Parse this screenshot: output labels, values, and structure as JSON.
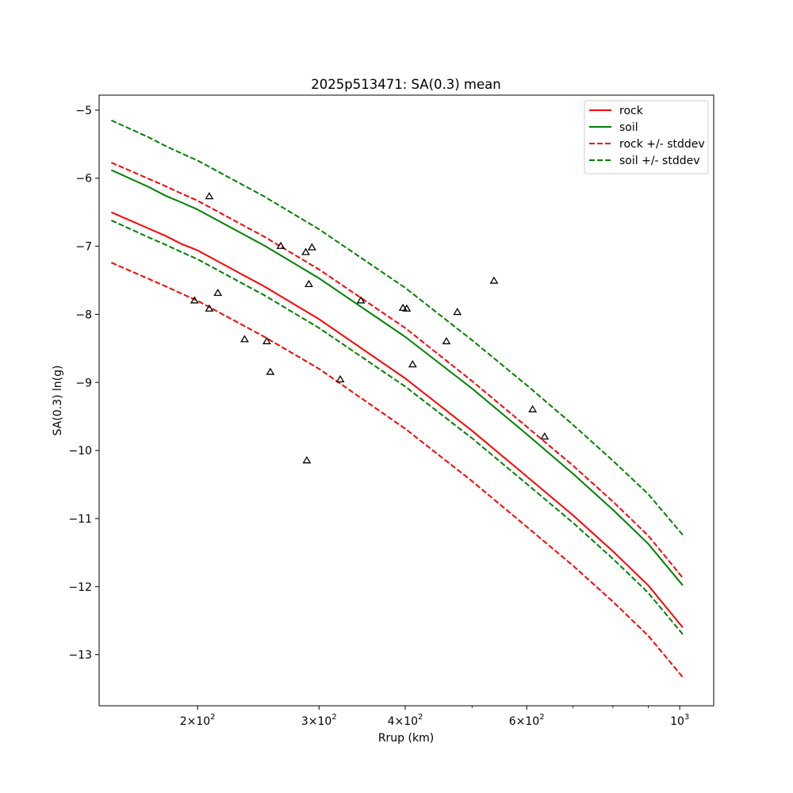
{
  "chart_data": {
    "type": "line",
    "title": "2025p513471: SA(0.3) mean",
    "xlabel": "Rrup (km)",
    "ylabel": "SA(0.3) ln(g)",
    "xscale": "log",
    "xlim": [
      144,
      1120
    ],
    "ylim": [
      -13.75,
      -4.78
    ],
    "grid": false,
    "legend_position": "top-right",
    "x_ticks": [
      {
        "value": 200,
        "mantissa": "2",
        "exponent": "2"
      },
      {
        "value": 300,
        "mantissa": "3",
        "exponent": "2"
      },
      {
        "value": 400,
        "mantissa": "4",
        "exponent": "2"
      },
      {
        "value": 600,
        "mantissa": "6",
        "exponent": "2"
      },
      {
        "value": 1000,
        "mantissa": "",
        "exponent": "3"
      }
    ],
    "x_tick_base": "10",
    "x_tick_times": "×",
    "y_ticks": [
      {
        "value": -5,
        "label": "−5"
      },
      {
        "value": -6,
        "label": "−6"
      },
      {
        "value": -7,
        "label": "−7"
      },
      {
        "value": -8,
        "label": "−8"
      },
      {
        "value": -9,
        "label": "−9"
      },
      {
        "value": -10,
        "label": "−10"
      },
      {
        "value": -11,
        "label": "−11"
      },
      {
        "value": -12,
        "label": "−12"
      },
      {
        "value": -13,
        "label": "−13"
      }
    ],
    "x": [
      150,
      170,
      180,
      190,
      200,
      250,
      300,
      400,
      500,
      600,
      700,
      800,
      900,
      1010
    ],
    "series": [
      {
        "name": "rock",
        "color": "#ff0000",
        "dash": "solid",
        "values": [
          -6.5,
          -6.74,
          -6.85,
          -6.97,
          -7.06,
          -7.59,
          -8.07,
          -8.94,
          -9.71,
          -10.38,
          -10.95,
          -11.48,
          -11.98,
          -12.6
        ]
      },
      {
        "name": "soil",
        "color": "#008000",
        "dash": "solid",
        "values": [
          -5.88,
          -6.13,
          -6.26,
          -6.36,
          -6.46,
          -6.99,
          -7.47,
          -8.33,
          -9.09,
          -9.76,
          -10.34,
          -10.87,
          -11.37,
          -11.98
        ]
      },
      {
        "name": "rock +/- stddev",
        "color": "#ff0000",
        "dash": "dashed",
        "values": [
          -5.77,
          -6.01,
          -6.12,
          -6.23,
          -6.33,
          -6.86,
          -7.34,
          -8.2,
          -8.98,
          -9.65,
          -10.22,
          -10.75,
          -11.25,
          -11.87
        ]
      },
      {
        "name": "",
        "color": "#ff0000",
        "dash": "dashed",
        "values": [
          -7.24,
          -7.48,
          -7.59,
          -7.7,
          -7.8,
          -8.33,
          -8.8,
          -9.68,
          -10.45,
          -11.12,
          -11.69,
          -12.22,
          -12.72,
          -13.33
        ]
      },
      {
        "name": "soil +/- stddev",
        "color": "#008000",
        "dash": "dashed",
        "values": [
          -5.15,
          -5.4,
          -5.53,
          -5.64,
          -5.74,
          -6.27,
          -6.75,
          -7.61,
          -8.38,
          -9.04,
          -9.62,
          -10.15,
          -10.64,
          -11.24
        ]
      },
      {
        "name": "",
        "color": "#008000",
        "dash": "dashed",
        "values": [
          -6.62,
          -6.87,
          -6.98,
          -7.09,
          -7.19,
          -7.72,
          -8.2,
          -9.06,
          -9.82,
          -10.49,
          -11.06,
          -11.59,
          -12.09,
          -12.7
        ]
      }
    ],
    "observations": [
      {
        "x": 208,
        "y": -6.27
      },
      {
        "x": 198,
        "y": -7.8
      },
      {
        "x": 208,
        "y": -7.92
      },
      {
        "x": 214,
        "y": -7.69
      },
      {
        "x": 234,
        "y": -8.37
      },
      {
        "x": 252,
        "y": -8.4
      },
      {
        "x": 255,
        "y": -8.85
      },
      {
        "x": 264,
        "y": -7.0
      },
      {
        "x": 287,
        "y": -7.09
      },
      {
        "x": 293,
        "y": -7.02
      },
      {
        "x": 290,
        "y": -7.56
      },
      {
        "x": 288,
        "y": -10.15
      },
      {
        "x": 322,
        "y": -8.96
      },
      {
        "x": 345,
        "y": -7.8
      },
      {
        "x": 397,
        "y": -7.91
      },
      {
        "x": 402,
        "y": -7.92
      },
      {
        "x": 410,
        "y": -8.74
      },
      {
        "x": 459,
        "y": -8.4
      },
      {
        "x": 476,
        "y": -7.97
      },
      {
        "x": 538,
        "y": -7.51
      },
      {
        "x": 612,
        "y": -9.4
      },
      {
        "x": 637,
        "y": -9.8
      }
    ]
  }
}
